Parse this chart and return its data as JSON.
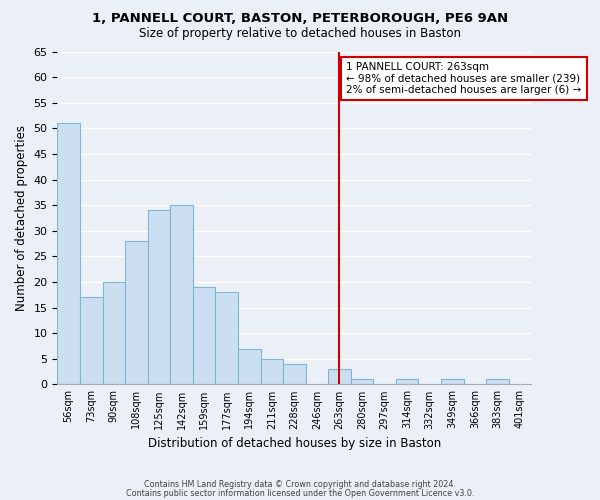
{
  "title1": "1, PANNELL COURT, BASTON, PETERBOROUGH, PE6 9AN",
  "title2": "Size of property relative to detached houses in Baston",
  "xlabel": "Distribution of detached houses by size in Baston",
  "ylabel": "Number of detached properties",
  "bar_labels": [
    "56sqm",
    "73sqm",
    "90sqm",
    "108sqm",
    "125sqm",
    "142sqm",
    "159sqm",
    "177sqm",
    "194sqm",
    "211sqm",
    "228sqm",
    "246sqm",
    "263sqm",
    "280sqm",
    "297sqm",
    "314sqm",
    "332sqm",
    "349sqm",
    "366sqm",
    "383sqm",
    "401sqm"
  ],
  "bar_heights": [
    51,
    17,
    20,
    28,
    34,
    35,
    19,
    18,
    7,
    5,
    4,
    0,
    3,
    1,
    0,
    1,
    0,
    1,
    0,
    1,
    0
  ],
  "bar_color": "#ccdff0",
  "bar_edge_color": "#7eb6d9",
  "vline_x": 12,
  "vline_color": "#cc0000",
  "annotation_title": "1 PANNELL COURT: 263sqm",
  "annotation_line1": "← 98% of detached houses are smaller (239)",
  "annotation_line2": "2% of semi-detached houses are larger (6) →",
  "annotation_box_color": "#ffffff",
  "annotation_box_edge": "#cc0000",
  "footer1": "Contains HM Land Registry data © Crown copyright and database right 2024.",
  "footer2": "Contains public sector information licensed under the Open Government Licence v3.0.",
  "ylim": [
    0,
    65
  ],
  "yticks": [
    0,
    5,
    10,
    15,
    20,
    25,
    30,
    35,
    40,
    45,
    50,
    55,
    60,
    65
  ],
  "bg_color": "#eaf0f6",
  "plot_bg_color": "#eaf0f6"
}
